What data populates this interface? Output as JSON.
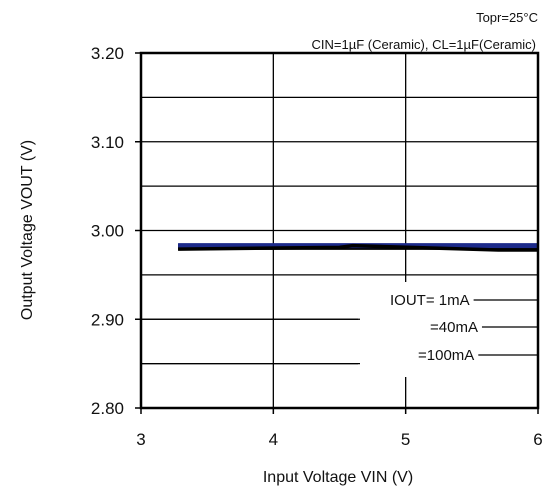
{
  "chart_data": {
    "type": "line",
    "title": "",
    "conditions": [
      "Topr=25°C",
      "CIN=1µF (Ceramic), CL=1µF(Ceramic)"
    ],
    "xlabel": "Input Voltage VIN (V)",
    "ylabel": "Output Voltage VOUT (V)",
    "xlim": [
      3,
      6
    ],
    "ylim": [
      2.8,
      3.2
    ],
    "x_ticks": [
      "3",
      "4",
      "5",
      "6"
    ],
    "y_ticks": [
      "2.80",
      "2.90",
      "3.00",
      "3.10",
      "3.20"
    ],
    "grid": true,
    "legend_position": "bottom-right",
    "legend": [
      "IOUT= 1mA",
      "=40mA",
      "=100mA"
    ],
    "series": [
      {
        "name": "IOUT= 1mA",
        "color": "#000000",
        "x": [
          3.28,
          6.0
        ],
        "y": [
          2.9815,
          2.9815
        ]
      },
      {
        "name": "=40mA",
        "color": "#1c2a8a",
        "x": [
          3.28,
          6.0
        ],
        "y": [
          2.983,
          2.983
        ]
      },
      {
        "name": "=100mA",
        "color": "#000000",
        "x": [
          3.28,
          4.5,
          4.6,
          5.7,
          6.0
        ],
        "y": [
          2.979,
          2.981,
          2.983,
          2.978,
          2.978
        ]
      }
    ]
  }
}
